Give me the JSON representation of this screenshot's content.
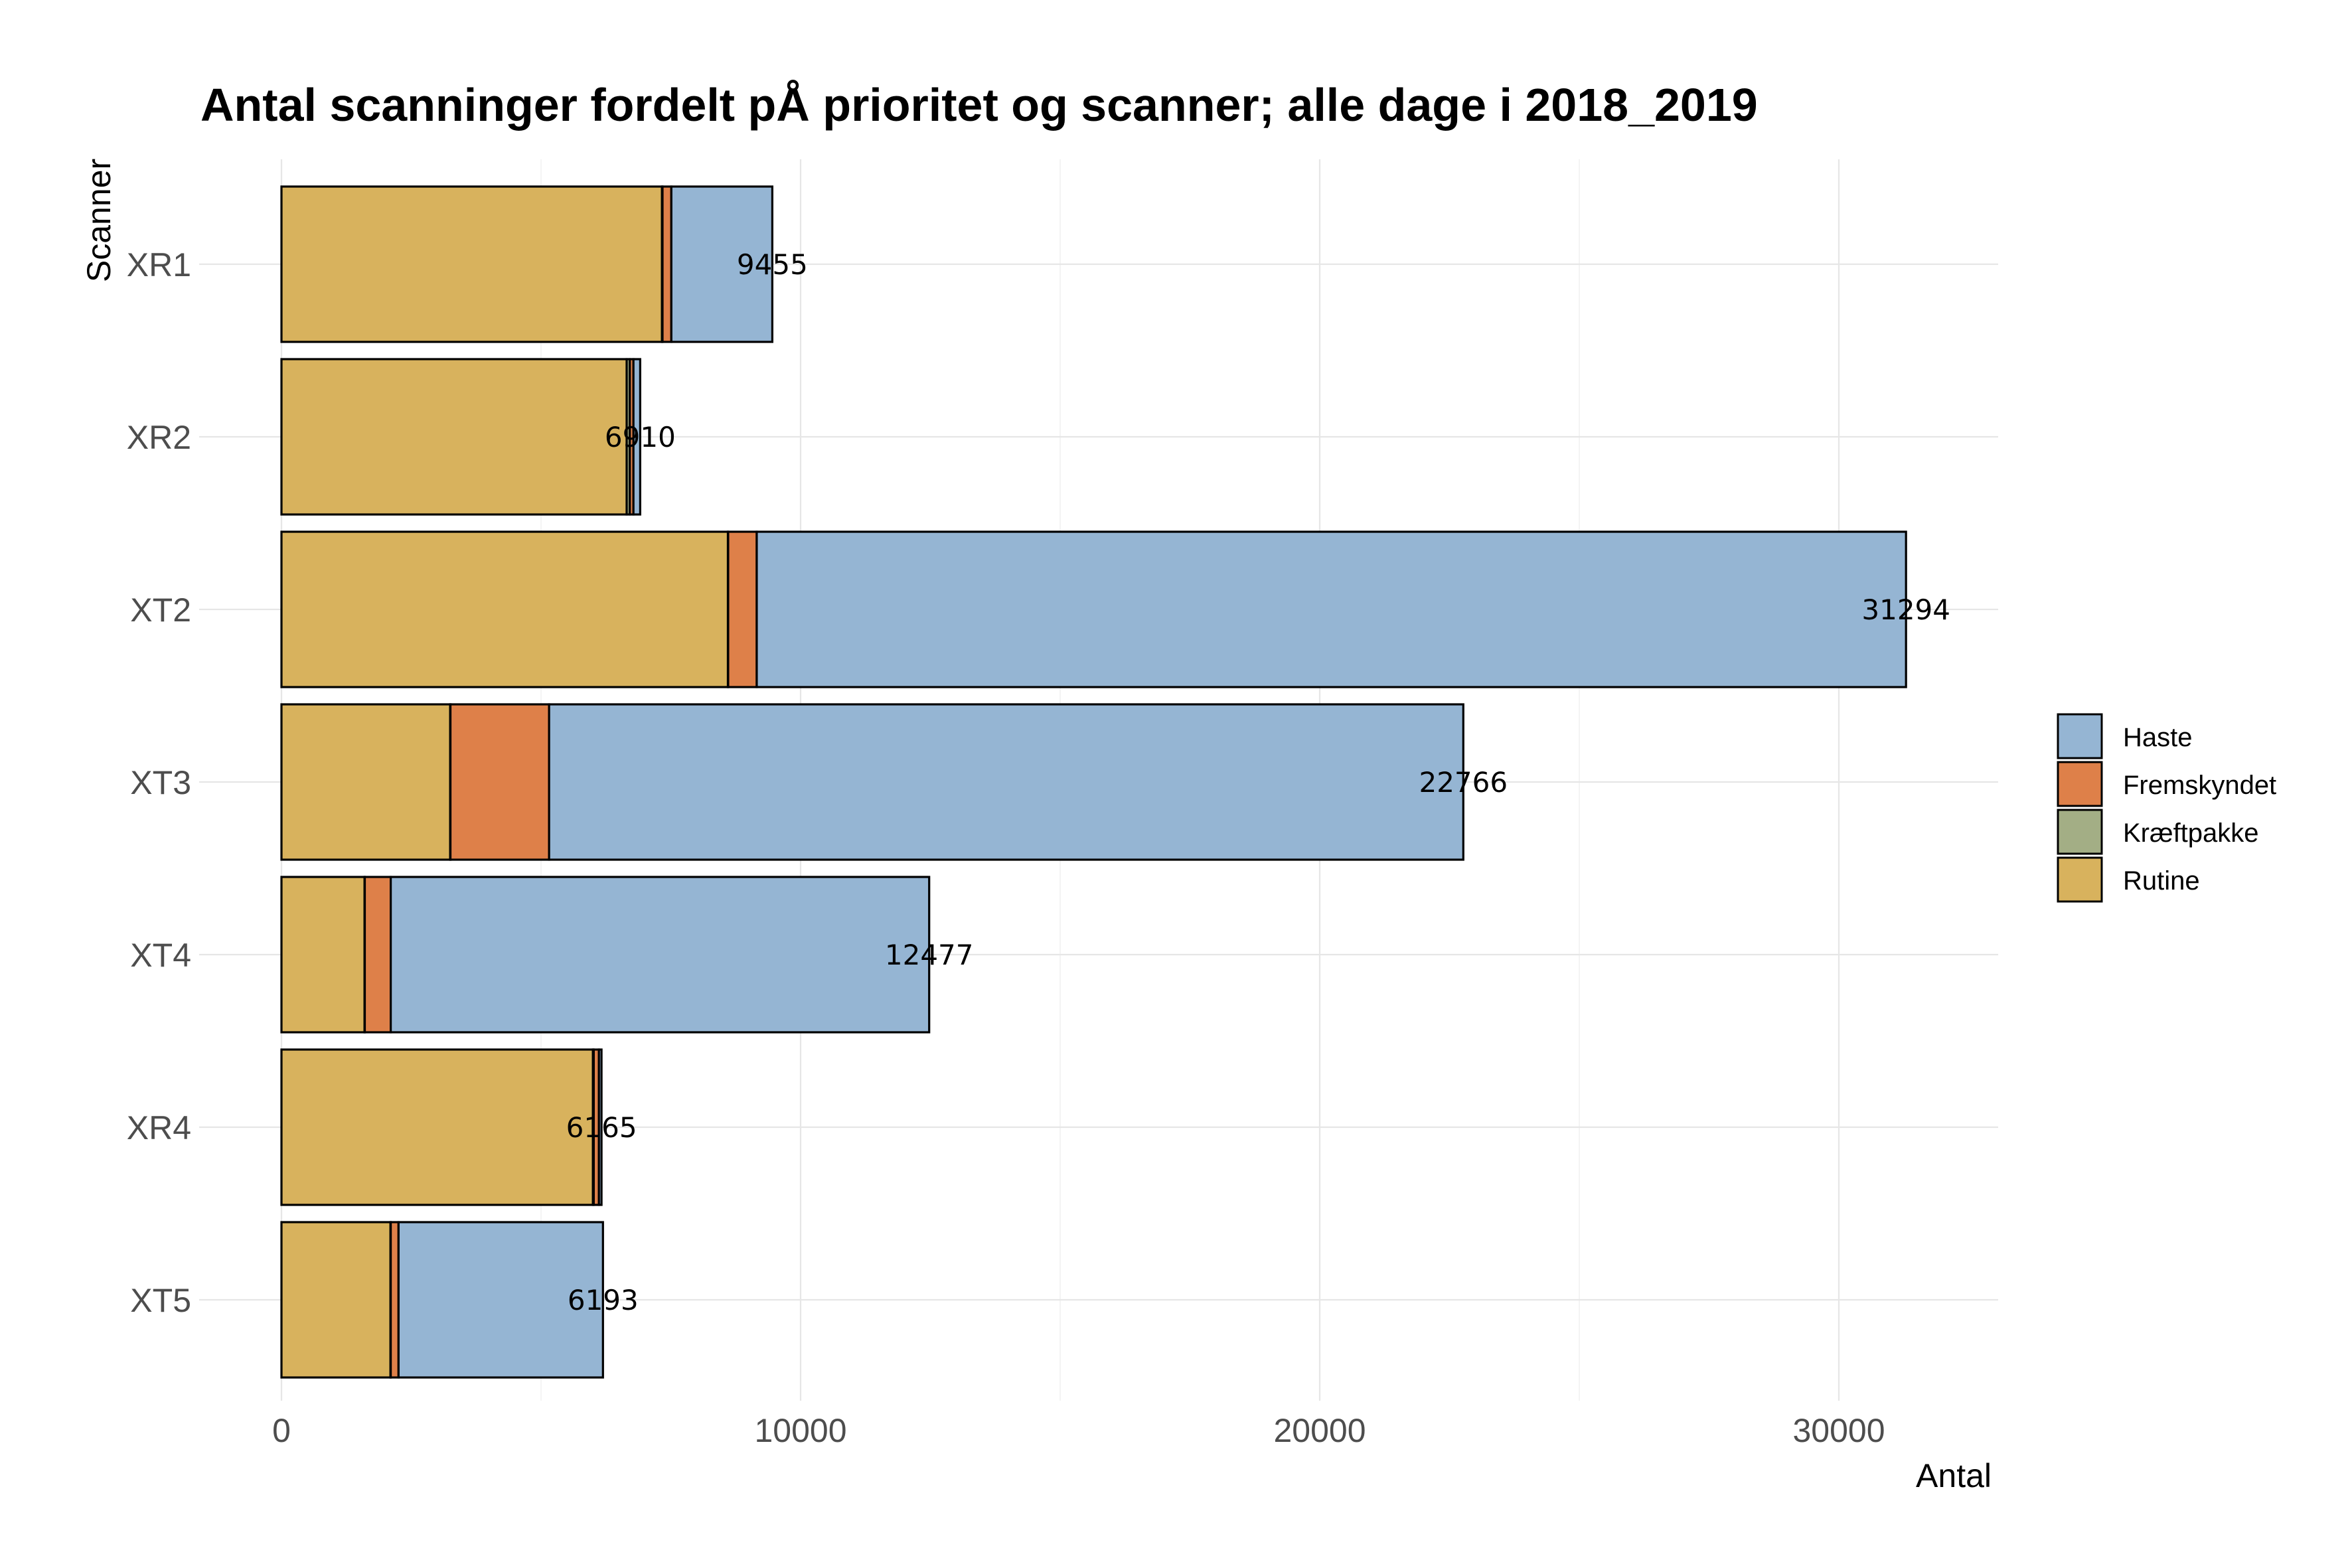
{
  "chart_data": {
    "type": "bar",
    "orientation": "horizontal",
    "stacked": true,
    "title": "Antal scanninger fordelt pÅ prioritet og scanner; alle dage i 2018_2019",
    "xlabel": "Antal",
    "ylabel": "Scanner",
    "xlim": [
      0,
      32800
    ],
    "x_ticks": [
      0,
      10000,
      20000,
      30000
    ],
    "x_tick_labels": [
      "0",
      "10000",
      "20000",
      "30000"
    ],
    "grid": true,
    "legend_position": "right",
    "categories": [
      "XR1",
      "XR2",
      "XT2",
      "XT3",
      "XT4",
      "XR4",
      "XT5"
    ],
    "series": [
      {
        "name": "Rutine",
        "color": "#D8B25D",
        "values": [
          7330,
          6650,
          8600,
          3250,
          1600,
          6000,
          2100
        ]
      },
      {
        "name": "Kræftpakke",
        "color": "#A3AE85",
        "values": [
          10,
          60,
          5,
          5,
          5,
          15,
          5
        ]
      },
      {
        "name": "Fremskyndet",
        "color": "#DE8049",
        "values": [
          170,
          70,
          550,
          1900,
          500,
          100,
          150
        ]
      },
      {
        "name": "Haste",
        "color": "#95B5D3",
        "values": [
          1945,
          130,
          22139,
          17611,
          10372,
          50,
          3938
        ]
      }
    ],
    "totals": [
      9455,
      6910,
      31294,
      22766,
      12477,
      6165,
      6193
    ],
    "total_labels": [
      "9455",
      "6910",
      "31294",
      "22766",
      "12477",
      "6165",
      "6193"
    ],
    "legend": [
      {
        "label": "Haste",
        "color": "#95B5D3"
      },
      {
        "label": "Fremskyndet",
        "color": "#DE8049"
      },
      {
        "label": "Kræftpakke",
        "color": "#A3AE85"
      },
      {
        "label": "Rutine",
        "color": "#D8B25D"
      }
    ]
  }
}
